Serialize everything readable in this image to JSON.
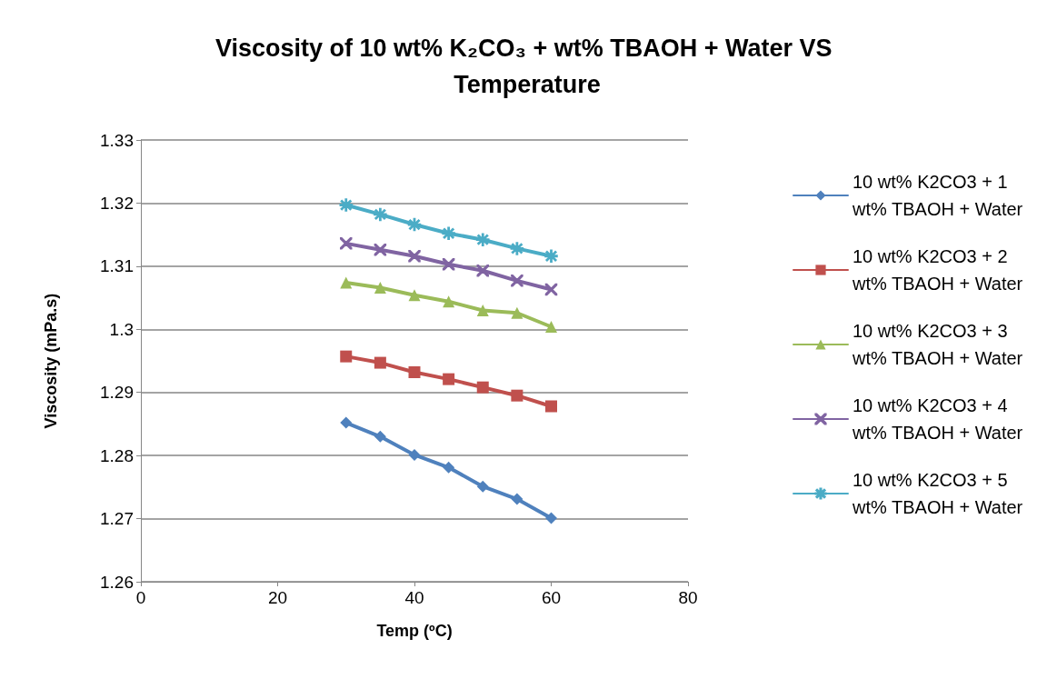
{
  "chart_data": {
    "type": "line",
    "title": "Viscosity of 10 wt% K₂CO₃ + wt% TBAOH + Water VS Temperature",
    "xlabel": "Temp (ºC)",
    "ylabel": "Viscosity (mPa.s)",
    "x": [
      30,
      35,
      40,
      45,
      50,
      55,
      60
    ],
    "series": [
      {
        "name": "10 wt% K2CO3 + 1 wt% TBAOH + Water",
        "color": "#4f81bd",
        "marker": "diamond",
        "values": [
          1.2852,
          1.283,
          1.2801,
          1.2781,
          1.2751,
          1.2731,
          1.2701
        ]
      },
      {
        "name": "10 wt% K2CO3 + 2 wt% TBAOH + Water",
        "color": "#c0504d",
        "marker": "square",
        "values": [
          1.2957,
          1.2947,
          1.2932,
          1.2921,
          1.2908,
          1.2895,
          1.2878
        ]
      },
      {
        "name": "10 wt% K2CO3 + 3 wt% TBAOH + Water",
        "color": "#9bbb59",
        "marker": "triangle",
        "values": [
          1.3074,
          1.3066,
          1.3054,
          1.3044,
          1.303,
          1.3026,
          1.3004
        ]
      },
      {
        "name": "10 wt% K2CO3 + 4 wt% TBAOH + Water",
        "color": "#8064a2",
        "marker": "cross",
        "values": [
          1.3136,
          1.3126,
          1.3116,
          1.3103,
          1.3093,
          1.3077,
          1.3063
        ]
      },
      {
        "name": "10 wt% K2CO3 + 5 wt% TBAOH + Water",
        "color": "#4bacc6",
        "marker": "star",
        "values": [
          1.3197,
          1.3182,
          1.3166,
          1.3152,
          1.3142,
          1.3128,
          1.3116
        ]
      }
    ],
    "xlim": [
      0,
      80
    ],
    "xticks": [
      0,
      20,
      40,
      60,
      80
    ],
    "ylim": [
      1.26,
      1.33
    ],
    "yticks": [
      1.26,
      1.27,
      1.28,
      1.29,
      1.3,
      1.31,
      1.32,
      1.33
    ],
    "grid": "y",
    "legend": "right",
    "line_style": "solid"
  }
}
